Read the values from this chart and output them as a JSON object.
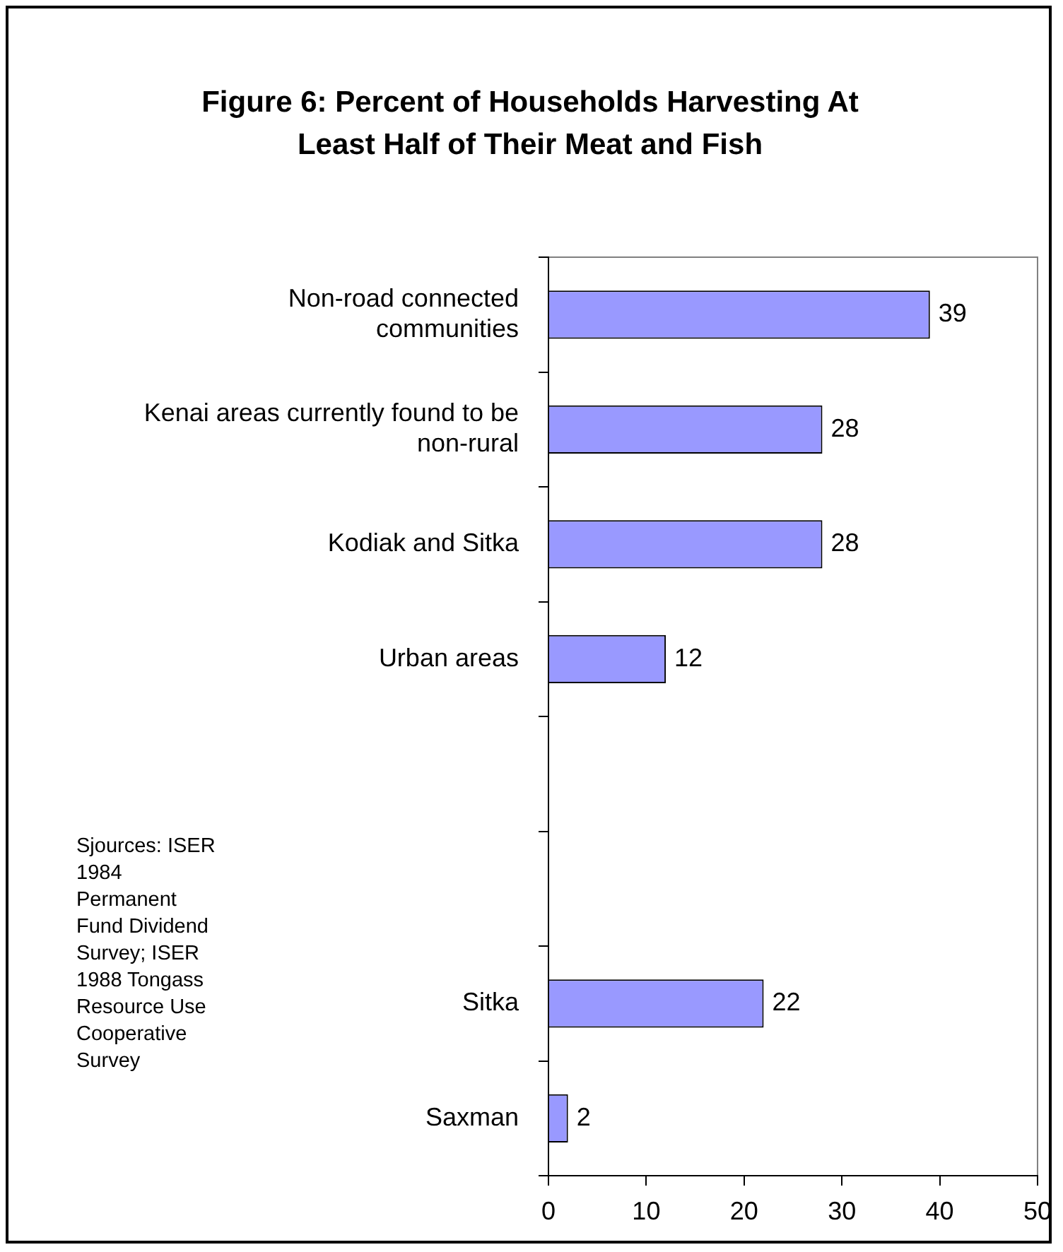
{
  "chart_data": {
    "type": "bar",
    "orientation": "horizontal",
    "title": "Figure 6: Percent of Households Harvesting At Least Half of Their Meat and Fish",
    "categories": [
      "Non-road connected communities",
      "Kenai areas currently found to be non-rural",
      "Kodiak and Sitka",
      "Urban areas",
      null,
      null,
      "Sitka",
      "Saxman"
    ],
    "values": [
      39,
      28,
      28,
      12,
      null,
      null,
      22,
      2
    ],
    "color": "#9999ff",
    "xlim": [
      0,
      50
    ],
    "xticks": [
      0,
      10,
      20,
      30,
      40,
      50
    ],
    "data_labels": true,
    "legend": false,
    "grid": false,
    "annotations": [
      "Sjources: ISER 1984 Permanent Fund Dividend Survey; ISER 1988 Tongass Resource Use Cooperative Survey"
    ]
  }
}
